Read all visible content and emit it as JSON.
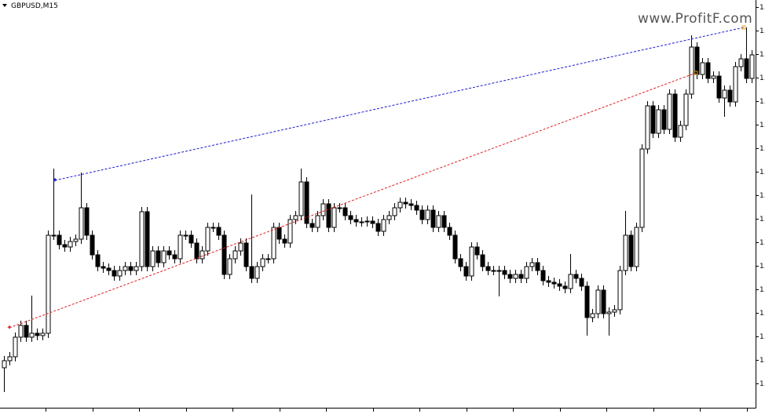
{
  "chart_data": {
    "type": "candlestick",
    "title": "GBPUSD,M15",
    "watermark": "www.ProfitF.com",
    "up_color": "#ffffff",
    "down_color": "#000000",
    "ylim": [
      -31,
      488
    ],
    "yticks": [
      {
        "value": 0,
        "label": "1."
      },
      {
        "value": 30,
        "label": "1."
      },
      {
        "value": 60,
        "label": "1."
      },
      {
        "value": 90,
        "label": "1."
      },
      {
        "value": 120,
        "label": "1."
      },
      {
        "value": 150,
        "label": "1."
      },
      {
        "value": 180,
        "label": "1."
      },
      {
        "value": 210,
        "label": "1."
      },
      {
        "value": 240,
        "label": "1."
      },
      {
        "value": 270,
        "label": "1."
      },
      {
        "value": 300,
        "label": "1."
      },
      {
        "value": 330,
        "label": "1."
      },
      {
        "value": 360,
        "label": "1."
      },
      {
        "value": 390,
        "label": "1."
      },
      {
        "value": 420,
        "label": "1."
      },
      {
        "value": 450,
        "label": "1."
      },
      {
        "value": 480,
        "label": "1."
      }
    ],
    "open": [
      20,
      29,
      34,
      59,
      74,
      59,
      64,
      61,
      64,
      189,
      189,
      177,
      174,
      181,
      184,
      224,
      189,
      164,
      149,
      147,
      144,
      137,
      144,
      149,
      144,
      149,
      219,
      149,
      169,
      154,
      169,
      164,
      159,
      189,
      189,
      179,
      159,
      169,
      199,
      199,
      189,
      139,
      159,
      169,
      179,
      149,
      134,
      149,
      159,
      159,
      199,
      184,
      179,
      209,
      214,
      257,
      204,
      199,
      214,
      229,
      199,
      224,
      224,
      214,
      209,
      206,
      206,
      207,
      204,
      194,
      209,
      214,
      224,
      231,
      229,
      227,
      221,
      209,
      221,
      199,
      214,
      199,
      189,
      159,
      149,
      137,
      174,
      164,
      149,
      144,
      144,
      144,
      139,
      134,
      139,
      134,
      149,
      154,
      144,
      131,
      129,
      127,
      124,
      121,
      139,
      134,
      124,
      84,
      89,
      119,
      89,
      91,
      94,
      144,
      189,
      149,
      199,
      299,
      354,
      319,
      349,
      324,
      369,
      314,
      329,
      369,
      429,
      394,
      409,
      389,
      392,
      364,
      374,
      359,
      404,
      414,
      389
    ],
    "high": [
      35,
      40,
      65,
      80,
      80,
      112,
      70,
      70,
      195,
      274,
      195,
      183,
      187,
      190,
      269,
      230,
      195,
      170,
      155,
      153,
      150,
      150,
      155,
      155,
      155,
      225,
      225,
      175,
      175,
      175,
      175,
      170,
      195,
      195,
      195,
      185,
      175,
      205,
      205,
      205,
      195,
      165,
      175,
      185,
      185,
      241,
      155,
      165,
      165,
      205,
      205,
      190,
      215,
      220,
      274,
      263,
      210,
      220,
      235,
      235,
      230,
      230,
      230,
      220,
      215,
      212,
      213,
      213,
      210,
      215,
      220,
      230,
      237,
      237,
      235,
      233,
      227,
      227,
      227,
      220,
      220,
      205,
      195,
      165,
      155,
      180,
      180,
      170,
      155,
      150,
      150,
      150,
      145,
      145,
      145,
      155,
      160,
      160,
      150,
      137,
      135,
      133,
      130,
      165,
      145,
      140,
      130,
      95,
      125,
      125,
      97,
      100,
      150,
      220,
      195,
      205,
      305,
      360,
      360,
      355,
      355,
      375,
      375,
      335,
      375,
      444,
      435,
      415,
      415,
      398,
      398,
      380,
      380,
      410,
      420,
      454,
      425
    ],
    "low": [
      -11,
      23,
      28,
      53,
      53,
      53,
      55,
      55,
      58,
      183,
      171,
      168,
      168,
      175,
      178,
      183,
      158,
      143,
      141,
      138,
      131,
      131,
      138,
      138,
      138,
      143,
      143,
      143,
      148,
      148,
      158,
      153,
      153,
      183,
      173,
      153,
      153,
      163,
      193,
      183,
      133,
      133,
      153,
      163,
      143,
      128,
      128,
      143,
      153,
      153,
      178,
      173,
      173,
      203,
      208,
      198,
      193,
      193,
      208,
      193,
      193,
      218,
      208,
      203,
      200,
      200,
      200,
      198,
      188,
      188,
      203,
      208,
      218,
      223,
      221,
      215,
      203,
      203,
      193,
      193,
      193,
      183,
      153,
      143,
      131,
      131,
      158,
      143,
      138,
      138,
      111,
      133,
      128,
      128,
      128,
      128,
      143,
      138,
      125,
      123,
      121,
      118,
      115,
      115,
      128,
      118,
      61,
      78,
      83,
      83,
      61,
      85,
      88,
      138,
      143,
      143,
      193,
      293,
      313,
      313,
      318,
      318,
      308,
      308,
      323,
      363,
      388,
      388,
      383,
      383,
      358,
      340,
      353,
      353,
      398,
      383,
      383
    ],
    "close": [
      29,
      34,
      59,
      74,
      59,
      64,
      61,
      64,
      189,
      189,
      177,
      174,
      181,
      184,
      224,
      189,
      164,
      149,
      147,
      144,
      137,
      144,
      149,
      144,
      149,
      219,
      149,
      169,
      154,
      169,
      164,
      159,
      189,
      189,
      179,
      159,
      169,
      199,
      199,
      189,
      139,
      159,
      169,
      179,
      149,
      134,
      149,
      159,
      159,
      199,
      184,
      179,
      209,
      214,
      257,
      204,
      199,
      214,
      229,
      199,
      224,
      224,
      214,
      209,
      206,
      206,
      207,
      204,
      194,
      209,
      214,
      224,
      231,
      229,
      227,
      221,
      209,
      221,
      199,
      214,
      199,
      189,
      159,
      149,
      137,
      174,
      164,
      149,
      144,
      144,
      144,
      139,
      134,
      139,
      134,
      149,
      154,
      144,
      131,
      129,
      127,
      124,
      121,
      139,
      134,
      124,
      84,
      89,
      119,
      89,
      91,
      94,
      144,
      189,
      149,
      199,
      299,
      354,
      319,
      349,
      324,
      369,
      314,
      329,
      369,
      429,
      394,
      409,
      389,
      392,
      364,
      374,
      359,
      404,
      414,
      389,
      419
    ]
  }
}
